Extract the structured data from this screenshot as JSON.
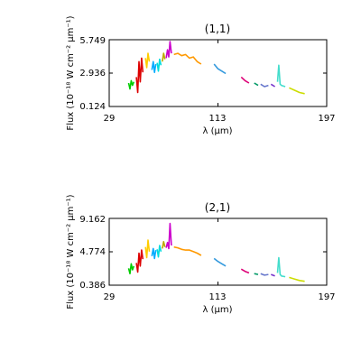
{
  "chart_data": [
    {
      "type": "line",
      "title": "(1,1)",
      "xlabel": "λ (μm)",
      "ylabel": "Flux (10⁻¹⁸ W cm⁻² μm⁻¹)",
      "xlim": [
        29,
        197
      ],
      "ylim": [
        0.124,
        5.749
      ],
      "xticks": [
        29,
        113,
        197
      ],
      "yticks": [
        0.124,
        2.936,
        5.749
      ],
      "xtick_labels": [
        "29",
        "113",
        "197"
      ],
      "ytick_labels": [
        "0.124",
        "2.936",
        "5.749"
      ],
      "grid": false,
      "legend": "none",
      "series": [
        {
          "color": "#00cc00",
          "x": [
            44.0,
            45.0,
            46.0,
            47.0,
            48.0
          ],
          "y": [
            2.1,
            1.6,
            2.3,
            1.9,
            2.2
          ]
        },
        {
          "color": "#dd0000",
          "x": [
            50.0,
            51.0,
            52.0,
            53.0,
            54.0,
            55.0
          ],
          "y": [
            2.6,
            1.3,
            3.9,
            2.2,
            4.2,
            3.0
          ]
        },
        {
          "color": "#ffcc00",
          "x": [
            57.0,
            58.0,
            59.0,
            60.0
          ],
          "y": [
            4.2,
            3.4,
            4.6,
            3.9
          ]
        },
        {
          "color": "#00aaff",
          "x": [
            62.0,
            63.0,
            64.0,
            65.0
          ],
          "y": [
            3.2,
            3.9,
            3.0,
            3.7
          ]
        },
        {
          "color": "#00dddd",
          "x": [
            66.0,
            67.0,
            68.0,
            69.0
          ],
          "y": [
            3.8,
            3.1,
            4.1,
            3.6
          ]
        },
        {
          "color": "#bbaa00",
          "x": [
            70.0,
            71.0,
            72.0
          ],
          "y": [
            3.9,
            4.6,
            4.1
          ]
        },
        {
          "color": "#cc00cc",
          "x": [
            73.0,
            74.0,
            75.0,
            76.0,
            77.0
          ],
          "y": [
            4.2,
            4.9,
            4.3,
            5.6,
            4.6
          ]
        },
        {
          "color": "#ff9900",
          "x": [
            79.0,
            82.0,
            85.0,
            88.0,
            91.0,
            94.0,
            97.0,
            100.0
          ],
          "y": [
            4.5,
            4.6,
            4.4,
            4.5,
            4.2,
            4.3,
            3.9,
            3.7
          ]
        },
        {
          "color": "#3399dd",
          "x": [
            110.0,
            113.0,
            116.0,
            119.0
          ],
          "y": [
            3.7,
            3.3,
            3.1,
            2.9
          ]
        },
        {
          "color": "#dd0077",
          "x": [
            131.0,
            134.0,
            137.0
          ],
          "y": [
            2.6,
            2.3,
            2.1
          ]
        },
        {
          "color": "#009966",
          "x": [
            141.0,
            144.0
          ],
          "y": [
            2.1,
            1.9
          ]
        },
        {
          "color": "#6677cc",
          "x": [
            146.0,
            149.0,
            152.0
          ],
          "y": [
            2.0,
            1.8,
            1.9
          ]
        },
        {
          "color": "#7733cc",
          "x": [
            154.0,
            157.0
          ],
          "y": [
            2.0,
            1.8
          ]
        },
        {
          "color": "#44ddcc",
          "x": [
            159.0,
            160.0,
            161.0,
            162.0,
            165.0
          ],
          "y": [
            2.2,
            3.6,
            2.0,
            1.9,
            1.8
          ]
        },
        {
          "color": "#ccdd00",
          "x": [
            168.0,
            172.0,
            176.0,
            180.0
          ],
          "y": [
            1.7,
            1.5,
            1.3,
            1.2
          ]
        }
      ]
    },
    {
      "type": "line",
      "title": "(2,1)",
      "xlabel": "λ (μm)",
      "ylabel": "Flux (10⁻¹⁸ W cm⁻² μm⁻¹)",
      "xlim": [
        29,
        197
      ],
      "ylim": [
        0.386,
        9.162
      ],
      "xticks": [
        29,
        113,
        197
      ],
      "yticks": [
        0.386,
        4.774,
        9.162
      ],
      "xtick_labels": [
        "29",
        "113",
        "197"
      ],
      "ytick_labels": [
        "0.386",
        "4.774",
        "9.162"
      ],
      "grid": false,
      "legend": "none",
      "series": [
        {
          "color": "#00cc00",
          "x": [
            44.0,
            45.0,
            46.0,
            47.0,
            48.0
          ],
          "y": [
            2.6,
            1.9,
            3.2,
            2.4,
            2.9
          ]
        },
        {
          "color": "#dd0000",
          "x": [
            50.0,
            51.0,
            52.0,
            53.0,
            54.0,
            55.0
          ],
          "y": [
            3.3,
            2.1,
            4.6,
            2.9,
            5.0,
            3.8
          ]
        },
        {
          "color": "#ffcc00",
          "x": [
            57.0,
            58.0,
            59.0,
            60.0
          ],
          "y": [
            5.4,
            4.0,
            6.3,
            4.8
          ]
        },
        {
          "color": "#00aaff",
          "x": [
            62.0,
            63.0,
            64.0,
            65.0
          ],
          "y": [
            4.2,
            5.2,
            3.9,
            5.0
          ]
        },
        {
          "color": "#00dddd",
          "x": [
            66.0,
            67.0,
            68.0,
            69.0
          ],
          "y": [
            5.1,
            4.1,
            5.6,
            4.8
          ]
        },
        {
          "color": "#bbaa00",
          "x": [
            70.0,
            71.0,
            72.0
          ],
          "y": [
            5.2,
            6.1,
            5.4
          ]
        },
        {
          "color": "#cc00cc",
          "x": [
            73.0,
            74.0,
            75.0,
            76.0,
            77.0
          ],
          "y": [
            5.3,
            6.0,
            5.2,
            8.5,
            5.6
          ]
        },
        {
          "color": "#ff9900",
          "x": [
            79.0,
            82.0,
            85.0,
            88.0,
            91.0,
            94.0,
            97.0,
            100.0
          ],
          "y": [
            5.4,
            5.3,
            5.1,
            5.0,
            5.0,
            4.8,
            4.6,
            4.3
          ]
        },
        {
          "color": "#3399dd",
          "x": [
            110.0,
            113.0,
            116.0,
            119.0
          ],
          "y": [
            3.9,
            3.5,
            3.2,
            2.9
          ]
        },
        {
          "color": "#dd0077",
          "x": [
            131.0,
            134.0,
            137.0
          ],
          "y": [
            2.5,
            2.2,
            2.0
          ]
        },
        {
          "color": "#009966",
          "x": [
            141.0,
            144.0
          ],
          "y": [
            1.9,
            1.8
          ]
        },
        {
          "color": "#6677cc",
          "x": [
            146.0,
            149.0,
            152.0
          ],
          "y": [
            1.9,
            1.7,
            1.8
          ]
        },
        {
          "color": "#7733cc",
          "x": [
            154.0,
            157.0
          ],
          "y": [
            1.8,
            1.6
          ]
        },
        {
          "color": "#44ddcc",
          "x": [
            159.0,
            160.0,
            161.0,
            162.0,
            165.0
          ],
          "y": [
            2.0,
            4.0,
            1.8,
            1.6,
            1.5
          ]
        },
        {
          "color": "#ccdd00",
          "x": [
            168.0,
            172.0,
            176.0,
            180.0
          ],
          "y": [
            1.4,
            1.2,
            1.0,
            0.9
          ]
        }
      ]
    }
  ]
}
